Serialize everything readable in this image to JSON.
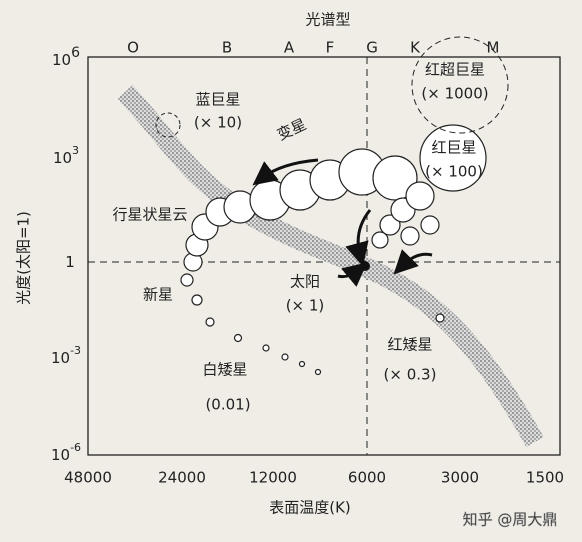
{
  "header": {
    "spectral_label": "光谱型",
    "spectral_types": [
      "O",
      "B",
      "A",
      "F",
      "G",
      "K",
      "M"
    ]
  },
  "y_axis": {
    "label": "光度(太阳=1)",
    "ticks": [
      {
        "base": "10",
        "exp": "6"
      },
      {
        "base": "10",
        "exp": "3"
      },
      {
        "base": "1",
        "exp": ""
      },
      {
        "base": "10",
        "exp": "-3"
      },
      {
        "base": "10",
        "exp": "-6"
      }
    ]
  },
  "x_axis": {
    "label": "表面温度(K)",
    "ticks": [
      "48000",
      "24000",
      "12000",
      "6000",
      "3000",
      "1500"
    ]
  },
  "labels": {
    "blue_giant": "蓝巨星",
    "blue_giant_scale": "(× 10)",
    "variable": "变星",
    "red_supergiant": "红超巨星",
    "red_supergiant_scale": "(× 1000)",
    "red_giant": "红巨星",
    "red_giant_scale": "(× 100)",
    "planetary_nebula": "行星状星云",
    "nova": "新星",
    "sun": "太阳",
    "sun_scale": "(× 1)",
    "white_dwarf": "白矮星",
    "white_dwarf_scale": "(0.01)",
    "red_dwarf": "红矮星",
    "red_dwarf_scale": "(× 0.3)"
  },
  "watermark": "知乎 @周大鼎"
}
